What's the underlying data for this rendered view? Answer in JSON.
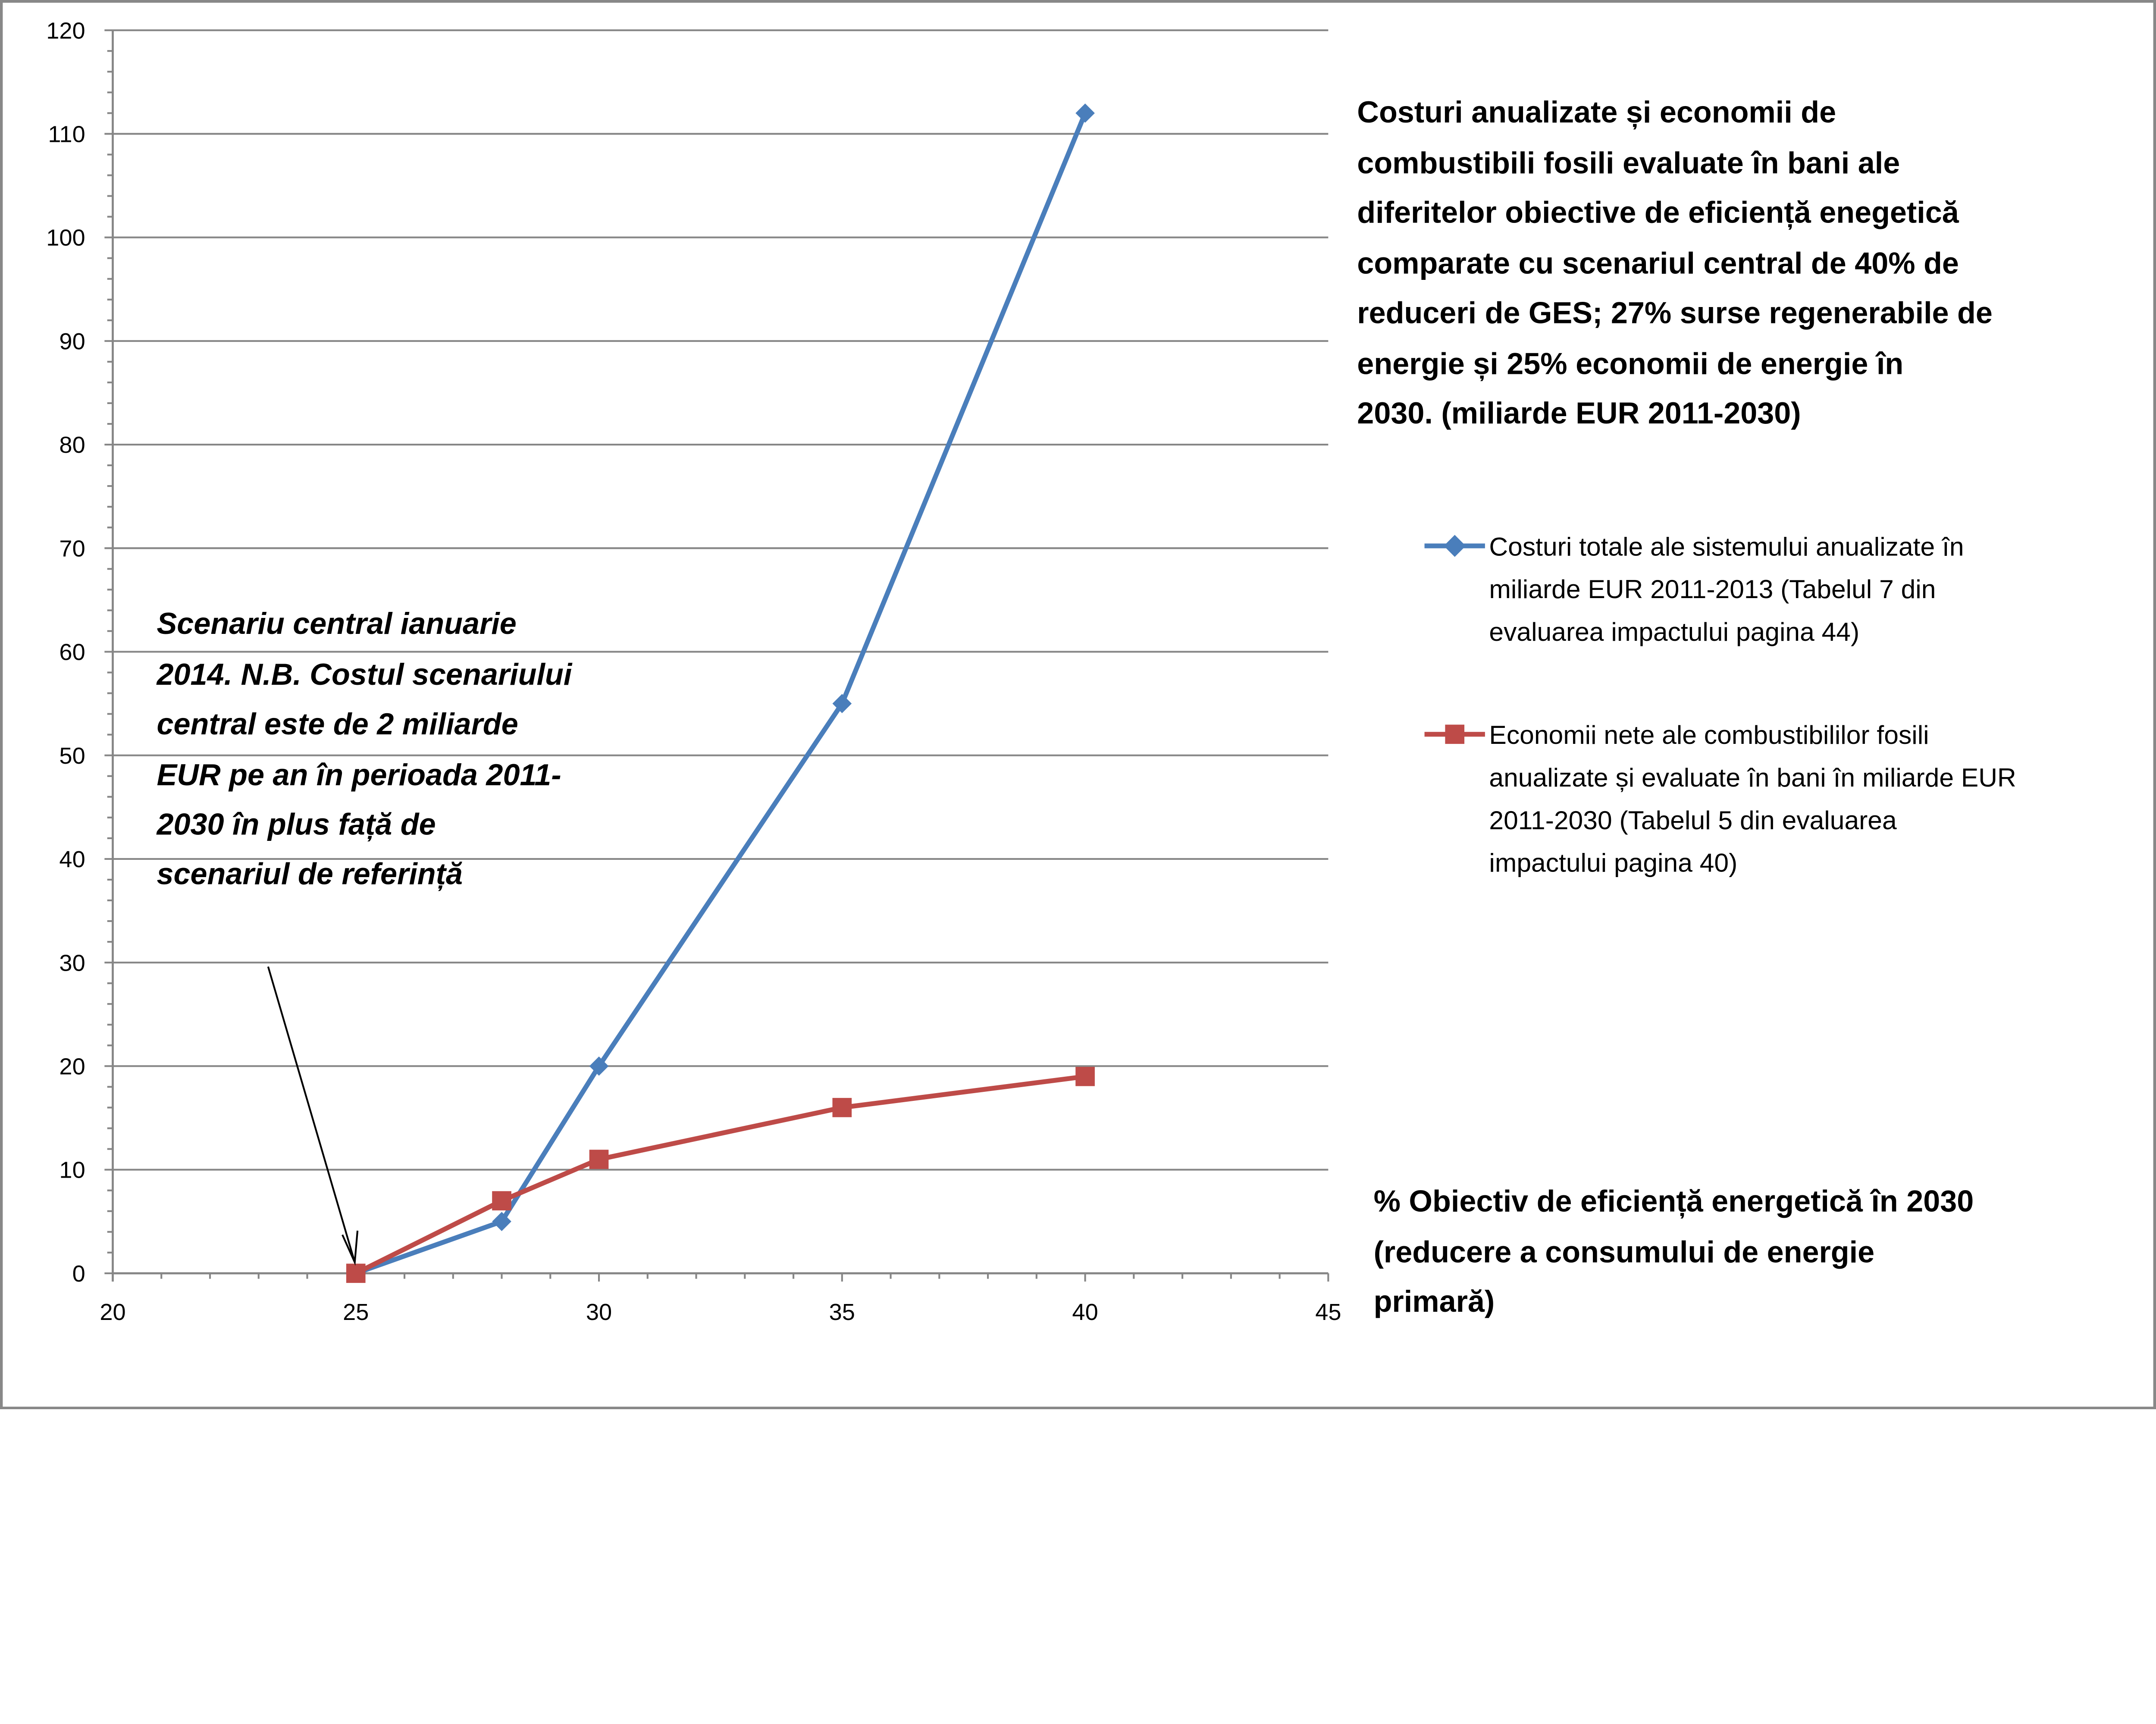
{
  "chart_data": {
    "type": "line",
    "title_lines": [
      "Costuri anualizate și economii de",
      "combustibili fosili evaluate în bani ale",
      "diferitelor obiective de eficiență enegetică",
      "comparate cu scenariul central de 40% de",
      "reduceri de GES; 27% surse regenerabile de",
      "energie și 25% economii de energie în",
      "2030. (miliarde EUR 2011-2030)"
    ],
    "xlabel_lines": [
      "% Obiectiv de eficiență energetică în 2030",
      "(reducere a consumului de energie",
      "primară)"
    ],
    "ylabel": "",
    "xlim": [
      20,
      45
    ],
    "ylim": [
      0,
      120
    ],
    "x_ticks": [
      "20",
      "25",
      "30",
      "35",
      "40",
      "45"
    ],
    "y_ticks": [
      "0",
      "10",
      "20",
      "30",
      "40",
      "50",
      "60",
      "70",
      "80",
      "90",
      "100",
      "110",
      "120"
    ],
    "grid": "horizontal",
    "legend_position": "right",
    "series": [
      {
        "name_lines": [
          "Costuri totale ale sistemului anualizate în",
          "miliarde EUR 2011-2013 (Tabelul 7 din",
          "evaluarea impactului pagina 44)"
        ],
        "color": "#4a7ebb",
        "marker": "diamond",
        "x": [
          25,
          28,
          30,
          35,
          40
        ],
        "y": [
          0,
          5,
          20,
          55,
          112
        ]
      },
      {
        "name_lines": [
          "Economii nete ale combustibililor fosili",
          "anualizate și evaluate în bani în miliarde EUR",
          "2011-2030 (Tabelul 5 din evaluarea",
          "impactului pagina 40)"
        ],
        "color": "#be4b48",
        "marker": "square",
        "x": [
          25,
          28,
          30,
          35,
          40
        ],
        "y": [
          0,
          7,
          11,
          16,
          19
        ]
      }
    ],
    "annotation": {
      "lines": [
        "Scenariu central  ianuarie",
        "2014. N.B. Costul scenariului",
        "central este de 2 miliarde",
        "EUR pe an în perioada 2011-",
        "2030 în plus față de",
        "scenariul de referință"
      ],
      "points_to": [
        25,
        0
      ]
    }
  }
}
